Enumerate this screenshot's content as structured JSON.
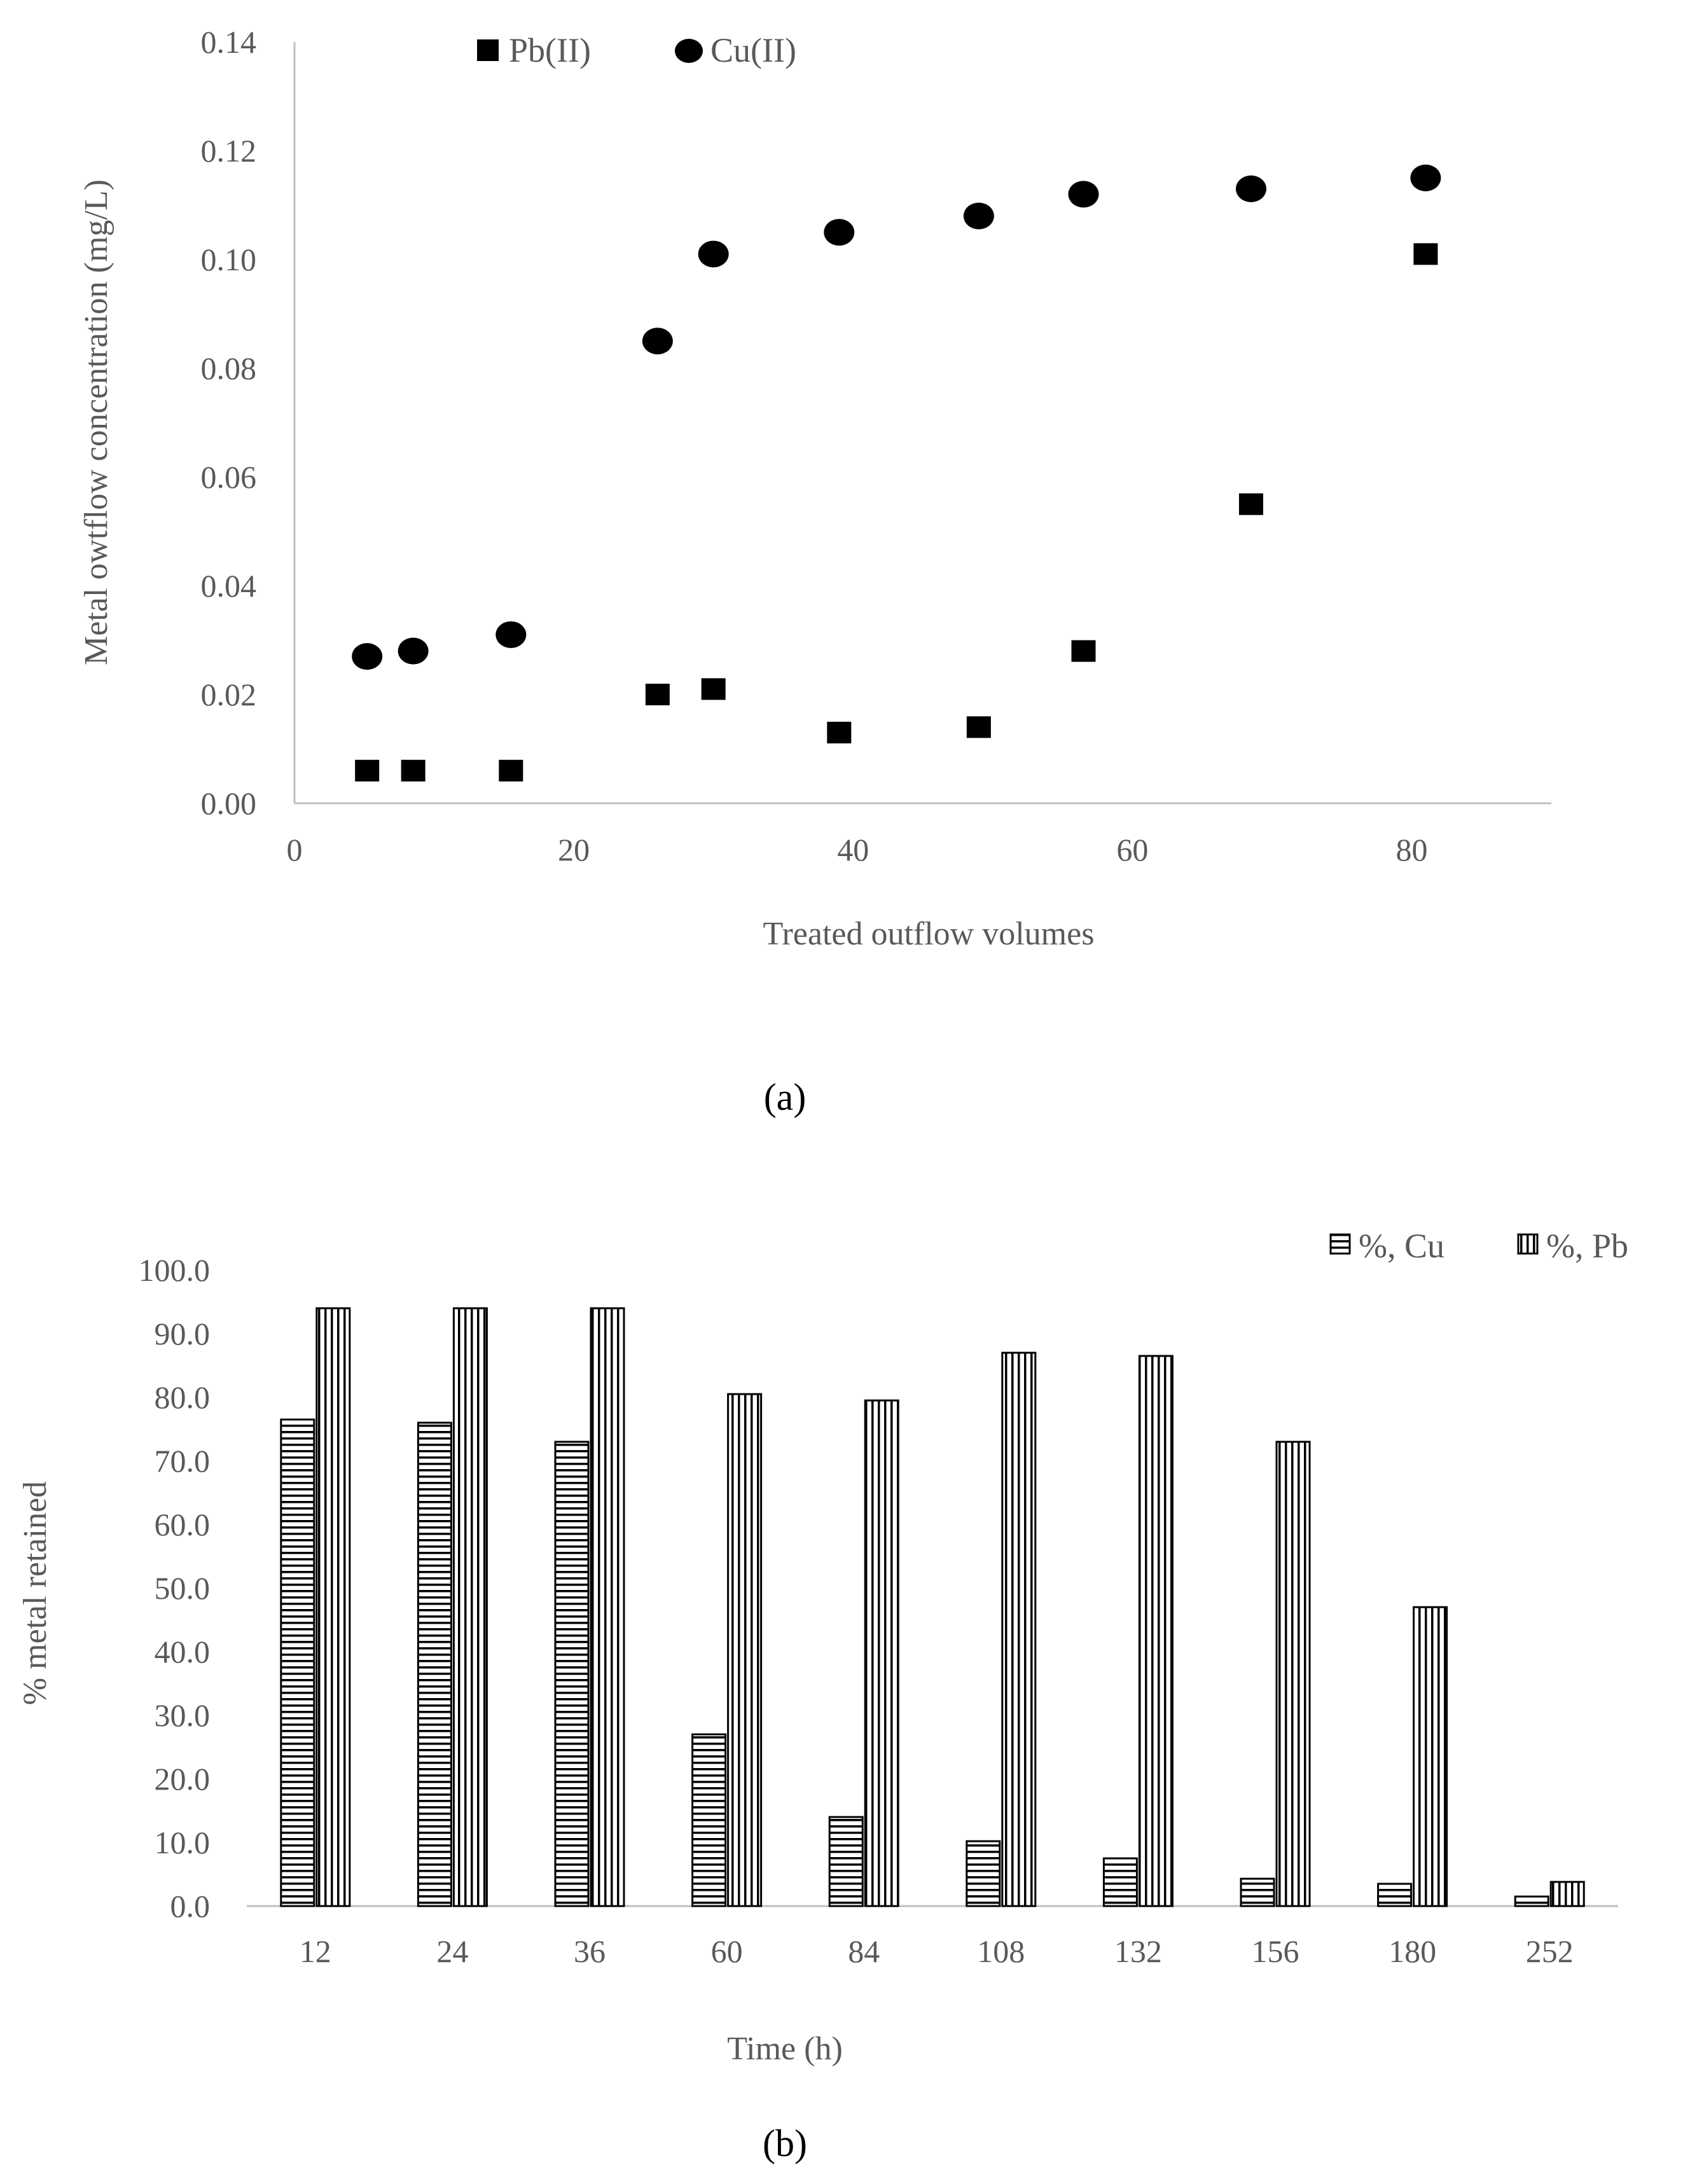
{
  "chart_data": [
    {
      "type": "scatter",
      "panel_label": "(a)",
      "xlabel": "Treated outflow volumes",
      "ylabel": "Metal owtflow concentration (mg/L)",
      "xlim": [
        0,
        90
      ],
      "ylim": [
        0,
        0.14
      ],
      "x_ticks": [
        "0",
        "20",
        "40",
        "60",
        "80"
      ],
      "y_ticks": [
        "0.00",
        "0.02",
        "0.04",
        "0.06",
        "0.08",
        "0.10",
        "0.12",
        "0.14"
      ],
      "legend_position": "top-center",
      "series": [
        {
          "name": "Pb(II)",
          "marker": "square",
          "color": "#000000",
          "x": [
            5.2,
            8.5,
            15.5,
            26,
            30,
            39,
            49,
            56.5,
            68.5,
            81
          ],
          "y": [
            0.006,
            0.006,
            0.006,
            0.02,
            0.021,
            0.013,
            0.014,
            0.028,
            0.055,
            0.101
          ]
        },
        {
          "name": "Cu(II)",
          "marker": "circle",
          "color": "#000000",
          "x": [
            5.2,
            8.5,
            15.5,
            26,
            30,
            39,
            49,
            56.5,
            68.5,
            81
          ],
          "y": [
            0.027,
            0.028,
            0.031,
            0.085,
            0.101,
            0.105,
            0.108,
            0.112,
            0.113,
            0.115
          ]
        }
      ]
    },
    {
      "type": "bar",
      "panel_label": "(b)",
      "xlabel": "Time (h)",
      "ylabel": "% metal retained",
      "ylim": [
        0,
        100
      ],
      "y_ticks": [
        "0.0",
        "10.0",
        "20.0",
        "30.0",
        "40.0",
        "50.0",
        "60.0",
        "70.0",
        "80.0",
        "90.0",
        "100.0"
      ],
      "categories": [
        "12",
        "24",
        "36",
        "60",
        "84",
        "108",
        "132",
        "156",
        "180",
        "252"
      ],
      "legend_position": "top-right",
      "series": [
        {
          "name": "%, Cu",
          "pattern": "horizontal-stripes",
          "values": [
            76.5,
            76,
            73,
            27,
            14,
            10.2,
            7.5,
            4.3,
            3.5,
            1.5
          ]
        },
        {
          "name": "%, Pb",
          "pattern": "vertical-stripes",
          "values": [
            94,
            94,
            94,
            80.5,
            79.5,
            87,
            86.5,
            73,
            47,
            3.8
          ]
        }
      ]
    }
  ]
}
